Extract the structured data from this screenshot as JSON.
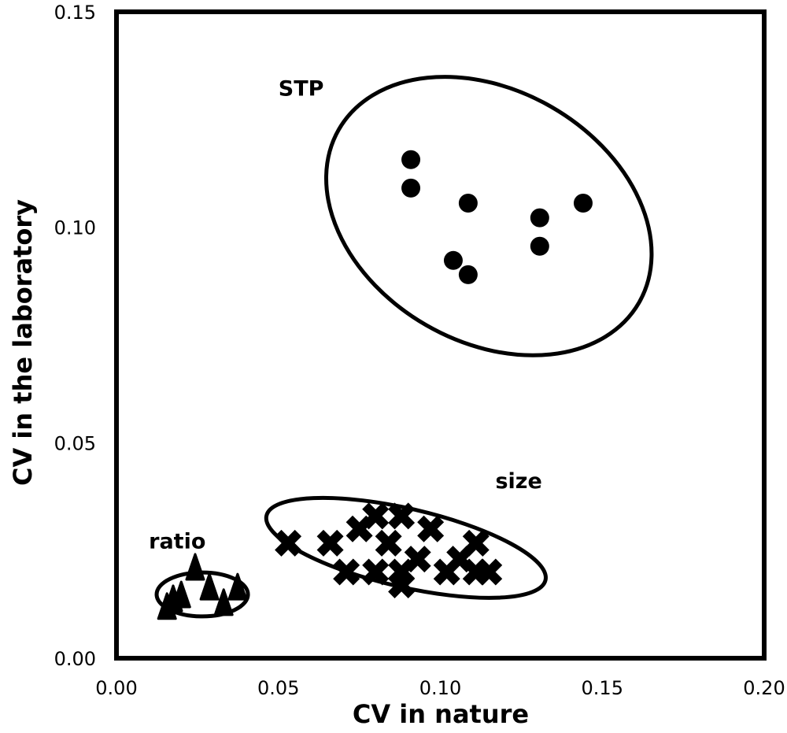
{
  "chart_data": {
    "type": "scatter",
    "title": "",
    "xlabel": "CV in nature",
    "ylabel": "CV in the laboratory",
    "xlim": [
      0,
      0.2
    ],
    "ylim": [
      0,
      0.15
    ],
    "x_ticks": [
      "0.00",
      "0.05",
      "0.10",
      "0.15",
      "0.20"
    ],
    "y_ticks": [
      "0.00",
      "0.05",
      "0.10",
      "0.15"
    ],
    "x_tick_values": [
      0,
      0.05,
      0.1,
      0.15,
      0.2
    ],
    "y_tick_values": [
      0,
      0.05,
      0.1,
      0.15
    ],
    "grid": false,
    "marker_color": "#000000",
    "series": [
      {
        "name": "STP",
        "marker": "circle",
        "points": [
          [
            0.0909,
            0.1157
          ],
          [
            0.0909,
            0.1091
          ],
          [
            0.1086,
            0.1056
          ],
          [
            0.1307,
            0.1022
          ],
          [
            0.1307,
            0.0956
          ],
          [
            0.1441,
            0.1056
          ],
          [
            0.104,
            0.0923
          ],
          [
            0.1086,
            0.089
          ]
        ],
        "ellipse": {
          "cx": 0.115,
          "cy": 0.1026,
          "rx": 0.0535,
          "ry": 0.0292,
          "angle": 30
        }
      },
      {
        "name": "size",
        "marker": "cross",
        "points": [
          [
            0.053,
            0.0267
          ],
          [
            0.066,
            0.0267
          ],
          [
            0.08,
            0.033
          ],
          [
            0.075,
            0.03
          ],
          [
            0.088,
            0.033
          ],
          [
            0.097,
            0.03
          ],
          [
            0.084,
            0.0267
          ],
          [
            0.093,
            0.023
          ],
          [
            0.071,
            0.02
          ],
          [
            0.08,
            0.02
          ],
          [
            0.088,
            0.02
          ],
          [
            0.088,
            0.017
          ],
          [
            0.111,
            0.0267
          ],
          [
            0.106,
            0.023
          ],
          [
            0.102,
            0.02
          ],
          [
            0.111,
            0.02
          ],
          [
            0.115,
            0.02
          ]
        ],
        "ellipse": {
          "cx": 0.0894,
          "cy": 0.0256,
          "rx": 0.0442,
          "ry": 0.0091,
          "angle": 13
        }
      },
      {
        "name": "ratio",
        "marker": "triangle",
        "points": [
          [
            0.0156,
            0.0121
          ],
          [
            0.02,
            0.0148
          ],
          [
            0.0243,
            0.0212
          ],
          [
            0.0287,
            0.0166
          ],
          [
            0.0331,
            0.013
          ],
          [
            0.0374,
            0.0166
          ],
          [
            0.0175,
            0.0139
          ]
        ],
        "ellipse": {
          "cx": 0.0265,
          "cy": 0.0148,
          "rx": 0.0141,
          "ry": 0.0051,
          "angle": 0
        }
      }
    ],
    "annotations": [
      {
        "text": "STP",
        "x": 0.05,
        "y": 0.1305
      },
      {
        "text": "size",
        "x": 0.117,
        "y": 0.0395
      },
      {
        "text": "ratio",
        "x": 0.01,
        "y": 0.0255
      }
    ]
  }
}
